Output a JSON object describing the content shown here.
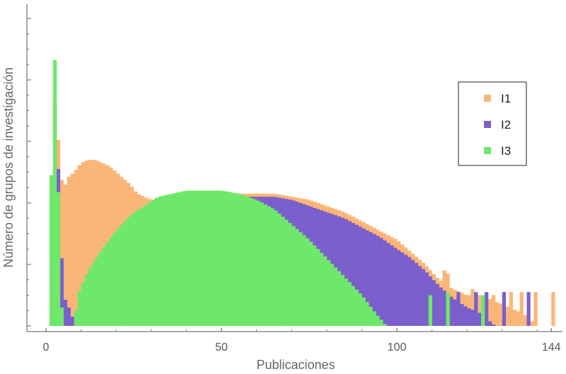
{
  "chart_data": {
    "type": "bar",
    "xlabel": "Publicaciones",
    "ylabel": "Número de grupos de investigación",
    "xlim": [
      -5,
      147
    ],
    "ylim": [
      0,
      1
    ],
    "x_ticks": [
      0,
      50,
      100,
      144
    ],
    "x_tick_labels": [
      "0",
      "50",
      "100",
      "144"
    ],
    "y_tick_labels_shown": false,
    "grid": false,
    "legend_position": "right",
    "bin_width": 1,
    "series": [
      {
        "name": "I1",
        "color": "#fbb677",
        "profile": [
          [
            1,
            0.0
          ],
          [
            2,
            0.76
          ],
          [
            3,
            0.7
          ],
          [
            4,
            0.51
          ],
          [
            5,
            0.44
          ],
          [
            6,
            0.48
          ],
          [
            8,
            0.5
          ],
          [
            10,
            0.53
          ],
          [
            12,
            0.54
          ],
          [
            14,
            0.54
          ],
          [
            16,
            0.53
          ],
          [
            18,
            0.52
          ],
          [
            20,
            0.5
          ],
          [
            22,
            0.48
          ],
          [
            24,
            0.46
          ],
          [
            26,
            0.43
          ],
          [
            28,
            0.42
          ],
          [
            30,
            0.41
          ],
          [
            34,
            0.42
          ],
          [
            40,
            0.43
          ],
          [
            45,
            0.43
          ],
          [
            50,
            0.43
          ],
          [
            55,
            0.43
          ],
          [
            60,
            0.43
          ],
          [
            65,
            0.43
          ],
          [
            70,
            0.42
          ],
          [
            75,
            0.41
          ],
          [
            80,
            0.39
          ],
          [
            85,
            0.37
          ],
          [
            90,
            0.34
          ],
          [
            95,
            0.31
          ],
          [
            100,
            0.28
          ],
          [
            104,
            0.24
          ],
          [
            108,
            0.2
          ],
          [
            112,
            0.15
          ],
          [
            116,
            0.12
          ],
          [
            120,
            0.1
          ],
          [
            124,
            0.1
          ],
          [
            128,
            0.08
          ],
          [
            132,
            0.06
          ],
          [
            136,
            0.04
          ],
          [
            140,
            0.0
          ]
        ],
        "sparse_tail": [
          {
            "x": 113,
            "value": 0.18
          },
          {
            "x": 114,
            "value": 0.17
          },
          {
            "x": 118,
            "value": 0.1
          },
          {
            "x": 121,
            "value": 0.12
          },
          {
            "x": 127,
            "value": 0.1
          },
          {
            "x": 132,
            "value": 0.11
          },
          {
            "x": 135,
            "value": 0.11
          },
          {
            "x": 139,
            "value": 0.11
          },
          {
            "x": 144,
            "value": 0.11
          }
        ]
      },
      {
        "name": "I2",
        "color": "#7b5fcc",
        "profile": [
          [
            1,
            0.0
          ],
          [
            2,
            0.76
          ],
          [
            3,
            0.69
          ],
          [
            4,
            0.33
          ],
          [
            5,
            0.11
          ],
          [
            6,
            0.06
          ],
          [
            7,
            0.06
          ],
          [
            8,
            0.0
          ],
          [
            16,
            0.0
          ],
          [
            20,
            0.1
          ],
          [
            24,
            0.25
          ],
          [
            28,
            0.35
          ],
          [
            32,
            0.38
          ],
          [
            36,
            0.39
          ],
          [
            40,
            0.4
          ],
          [
            45,
            0.41
          ],
          [
            50,
            0.41
          ],
          [
            55,
            0.42
          ],
          [
            60,
            0.42
          ],
          [
            65,
            0.42
          ],
          [
            70,
            0.41
          ],
          [
            75,
            0.39
          ],
          [
            80,
            0.37
          ],
          [
            85,
            0.35
          ],
          [
            90,
            0.32
          ],
          [
            95,
            0.29
          ],
          [
            100,
            0.25
          ],
          [
            104,
            0.22
          ],
          [
            108,
            0.18
          ],
          [
            112,
            0.13
          ],
          [
            116,
            0.09
          ],
          [
            120,
            0.06
          ],
          [
            124,
            0.04
          ],
          [
            128,
            0.0
          ]
        ],
        "sparse_tail": [
          {
            "x": 117,
            "value": 0.11
          },
          {
            "x": 122,
            "value": 0.11
          },
          {
            "x": 125,
            "value": 0.11
          },
          {
            "x": 130,
            "value": 0.11
          },
          {
            "x": 137,
            "value": 0.11
          }
        ]
      },
      {
        "name": "I3",
        "color": "#6ee86a",
        "profile": [
          [
            1,
            0.0
          ],
          [
            2,
            0.98
          ],
          [
            3,
            0.75
          ],
          [
            4,
            0.12
          ],
          [
            5,
            0.0
          ],
          [
            8,
            0.0
          ],
          [
            9,
            0.1
          ],
          [
            12,
            0.18
          ],
          [
            16,
            0.25
          ],
          [
            20,
            0.31
          ],
          [
            24,
            0.36
          ],
          [
            28,
            0.39
          ],
          [
            32,
            0.42
          ],
          [
            36,
            0.43
          ],
          [
            40,
            0.44
          ],
          [
            45,
            0.44
          ],
          [
            50,
            0.44
          ],
          [
            55,
            0.43
          ],
          [
            60,
            0.41
          ],
          [
            65,
            0.38
          ],
          [
            70,
            0.33
          ],
          [
            75,
            0.28
          ],
          [
            80,
            0.22
          ],
          [
            85,
            0.16
          ],
          [
            90,
            0.1
          ],
          [
            94,
            0.04
          ],
          [
            97,
            0.0
          ]
        ],
        "sparse_tail": [
          {
            "x": 109,
            "value": 0.1
          },
          {
            "x": 114,
            "value": 0.11
          },
          {
            "x": 124,
            "value": 0.1
          }
        ]
      }
    ]
  }
}
